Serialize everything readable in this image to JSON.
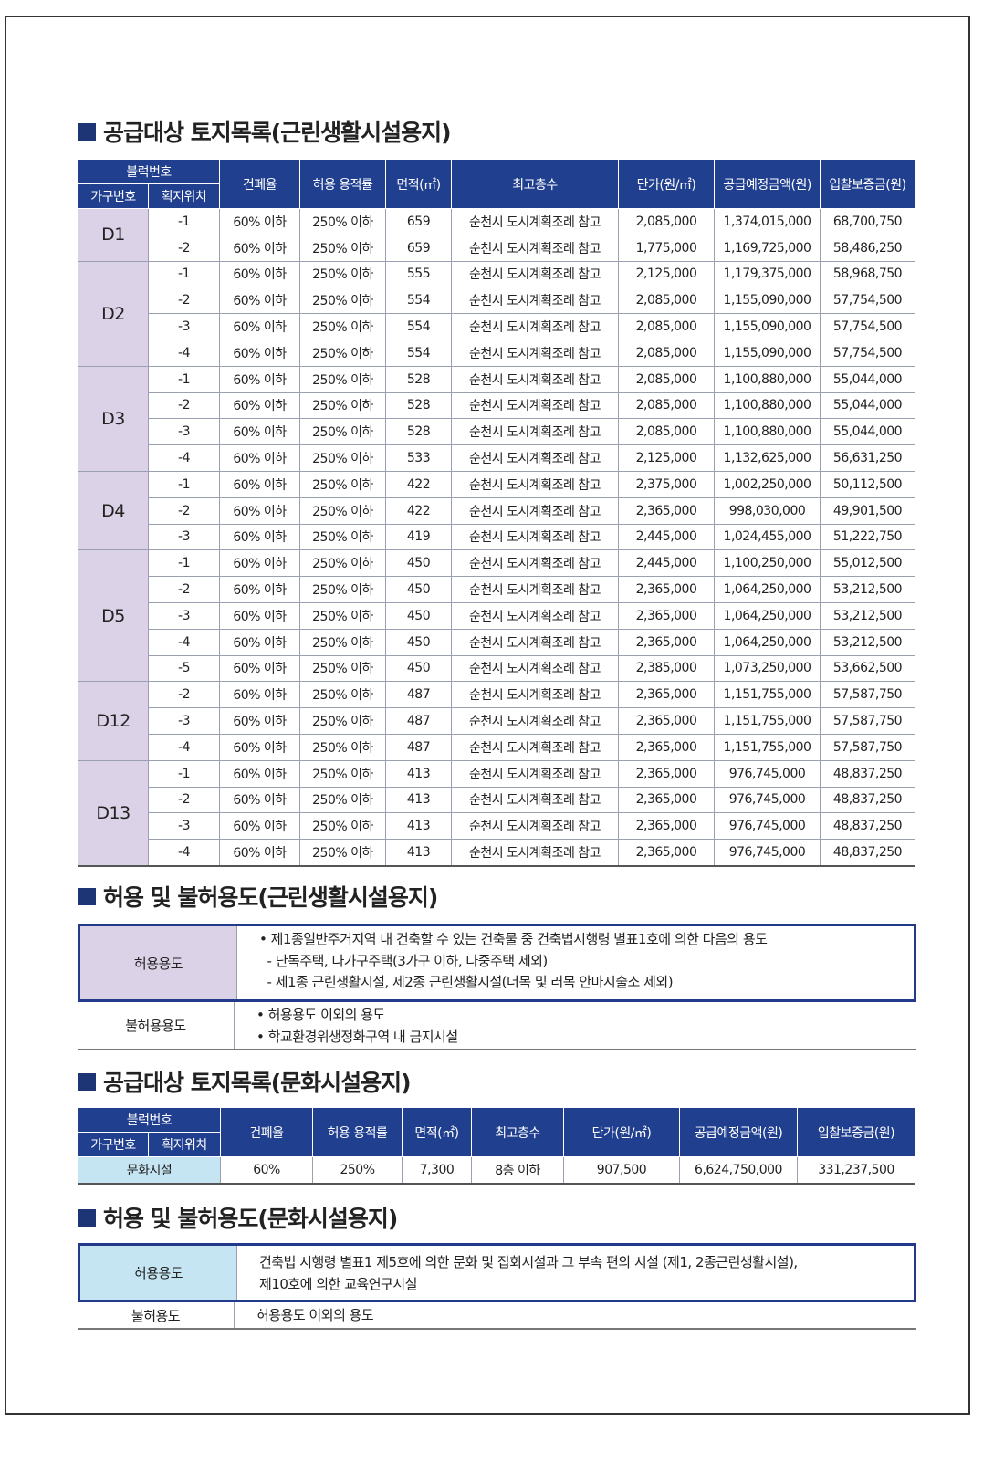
{
  "sections": {
    "s1_title": "공급대상 토지목록(근린생활시설용지)",
    "s2_title": "허용 및 불허용도(근린생활시설용지)",
    "s3_title": "공급대상 토지목록(문화시설용지)",
    "s4_title": "허용 및 불허용도(문화시설용지)"
  },
  "colors": {
    "header": "#213f8f",
    "block_cell": "#dcd2e8",
    "culture_cell": "#c6e5f2"
  },
  "table1": {
    "headers": {
      "block": "블럭번호",
      "house_no": "가구번호",
      "lot_pos": "획지위치",
      "coverage": "건폐율",
      "far": "허용 용적률",
      "area": "면적(㎡)",
      "max_floors": "최고층수",
      "unit_price": "단가(원/㎡)",
      "supply_price": "공급예정금액(원)",
      "deposit": "입찰보증금(원)"
    },
    "groups": [
      {
        "block": "D1",
        "rows": [
          [
            "-1",
            "60% 이하",
            "250% 이하",
            "659",
            "순천시 도시계획조례 참고",
            "2,085,000",
            "1,374,015,000",
            "68,700,750"
          ],
          [
            "-2",
            "60% 이하",
            "250% 이하",
            "659",
            "순천시 도시계획조례 참고",
            "1,775,000",
            "1,169,725,000",
            "58,486,250"
          ]
        ]
      },
      {
        "block": "D2",
        "rows": [
          [
            "-1",
            "60% 이하",
            "250% 이하",
            "555",
            "순천시 도시계획조례 참고",
            "2,125,000",
            "1,179,375,000",
            "58,968,750"
          ],
          [
            "-2",
            "60% 이하",
            "250% 이하",
            "554",
            "순천시 도시계획조례 참고",
            "2,085,000",
            "1,155,090,000",
            "57,754,500"
          ],
          [
            "-3",
            "60% 이하",
            "250% 이하",
            "554",
            "순천시 도시계획조례 참고",
            "2,085,000",
            "1,155,090,000",
            "57,754,500"
          ],
          [
            "-4",
            "60% 이하",
            "250% 이하",
            "554",
            "순천시 도시계획조례 참고",
            "2,085,000",
            "1,155,090,000",
            "57,754,500"
          ]
        ]
      },
      {
        "block": "D3",
        "rows": [
          [
            "-1",
            "60% 이하",
            "250% 이하",
            "528",
            "순천시 도시계획조례 참고",
            "2,085,000",
            "1,100,880,000",
            "55,044,000"
          ],
          [
            "-2",
            "60% 이하",
            "250% 이하",
            "528",
            "순천시 도시계획조례 참고",
            "2,085,000",
            "1,100,880,000",
            "55,044,000"
          ],
          [
            "-3",
            "60% 이하",
            "250% 이하",
            "528",
            "순천시 도시계획조례 참고",
            "2,085,000",
            "1,100,880,000",
            "55,044,000"
          ],
          [
            "-4",
            "60% 이하",
            "250% 이하",
            "533",
            "순천시 도시계획조례 참고",
            "2,125,000",
            "1,132,625,000",
            "56,631,250"
          ]
        ]
      },
      {
        "block": "D4",
        "rows": [
          [
            "-1",
            "60% 이하",
            "250% 이하",
            "422",
            "순천시 도시계획조례 참고",
            "2,375,000",
            "1,002,250,000",
            "50,112,500"
          ],
          [
            "-2",
            "60% 이하",
            "250% 이하",
            "422",
            "순천시 도시계획조례 참고",
            "2,365,000",
            "998,030,000",
            "49,901,500"
          ],
          [
            "-3",
            "60% 이하",
            "250% 이하",
            "419",
            "순천시 도시계획조례 참고",
            "2,445,000",
            "1,024,455,000",
            "51,222,750"
          ]
        ]
      },
      {
        "block": "D5",
        "rows": [
          [
            "-1",
            "60% 이하",
            "250% 이하",
            "450",
            "순천시 도시계획조례 참고",
            "2,445,000",
            "1,100,250,000",
            "55,012,500"
          ],
          [
            "-2",
            "60% 이하",
            "250% 이하",
            "450",
            "순천시 도시계획조례 참고",
            "2,365,000",
            "1,064,250,000",
            "53,212,500"
          ],
          [
            "-3",
            "60% 이하",
            "250% 이하",
            "450",
            "순천시 도시계획조례 참고",
            "2,365,000",
            "1,064,250,000",
            "53,212,500"
          ],
          [
            "-4",
            "60% 이하",
            "250% 이하",
            "450",
            "순천시 도시계획조례 참고",
            "2,365,000",
            "1,064,250,000",
            "53,212,500"
          ],
          [
            "-5",
            "60% 이하",
            "250% 이하",
            "450",
            "순천시 도시계획조례 참고",
            "2,385,000",
            "1,073,250,000",
            "53,662,500"
          ]
        ]
      },
      {
        "block": "D12",
        "rows": [
          [
            "-2",
            "60% 이하",
            "250% 이하",
            "487",
            "순천시 도시계획조례 참고",
            "2,365,000",
            "1,151,755,000",
            "57,587,750"
          ],
          [
            "-3",
            "60% 이하",
            "250% 이하",
            "487",
            "순천시 도시계획조례 참고",
            "2,365,000",
            "1,151,755,000",
            "57,587,750"
          ],
          [
            "-4",
            "60% 이하",
            "250% 이하",
            "487",
            "순천시 도시계획조례 참고",
            "2,365,000",
            "1,151,755,000",
            "57,587,750"
          ]
        ]
      },
      {
        "block": "D13",
        "rows": [
          [
            "-1",
            "60% 이하",
            "250% 이하",
            "413",
            "순천시 도시계획조례 참고",
            "2,365,000",
            "976,745,000",
            "48,837,250"
          ],
          [
            "-2",
            "60% 이하",
            "250% 이하",
            "413",
            "순천시 도시계획조례 참고",
            "2,365,000",
            "976,745,000",
            "48,837,250"
          ],
          [
            "-3",
            "60% 이하",
            "250% 이하",
            "413",
            "순천시 도시계획조례 참고",
            "2,365,000",
            "976,745,000",
            "48,837,250"
          ],
          [
            "-4",
            "60% 이하",
            "250% 이하",
            "413",
            "순천시 도시계획조례 참고",
            "2,365,000",
            "976,745,000",
            "48,837,250"
          ]
        ]
      }
    ]
  },
  "use1": {
    "allowed_label": "허용용도",
    "allowed_lines": [
      "• 제1종일반주거지역 내 건축할 수 있는 건축물 중 건축법시행령 별표1호에 의한 다음의 용도",
      "  - 단독주택, 다가구주택(3가구 이하, 다중주택 제외)",
      "  - 제1종 근린생활시설, 제2종 근린생활시설(더목 및 러목 안마시술소 제외)"
    ],
    "denied_label": "불허용용도",
    "denied_lines": [
      "• 허용용도 이외의 용도",
      "• 학교환경위생정화구역 내 금지시설"
    ]
  },
  "table2": {
    "headers": {
      "block": "블럭번호",
      "house_no": "가구번호",
      "lot_pos": "획지위치",
      "coverage": "건폐율",
      "far": "허용 용적률",
      "area": "면적(㎡)",
      "max_floors": "최고층수",
      "unit_price": "단가(원/㎡)",
      "supply_price": "공급예정금액(원)",
      "deposit": "입찰보증금(원)"
    },
    "row": [
      "문화시설",
      "60%",
      "250%",
      "7,300",
      "8층 이하",
      "907,500",
      "6,624,750,000",
      "331,237,500"
    ]
  },
  "use2": {
    "allowed_label": "허용용도",
    "allowed_lines": [
      "건축법 시행령 별표1 제5호에 의한 문화 및 집회시설과 그 부속 편의 시설 (제1, 2종근린생활시설),",
      "제10호에 의한 교육연구시설"
    ],
    "denied_label": "불허용도",
    "denied_lines": [
      "허용용도 이외의 용도"
    ]
  }
}
